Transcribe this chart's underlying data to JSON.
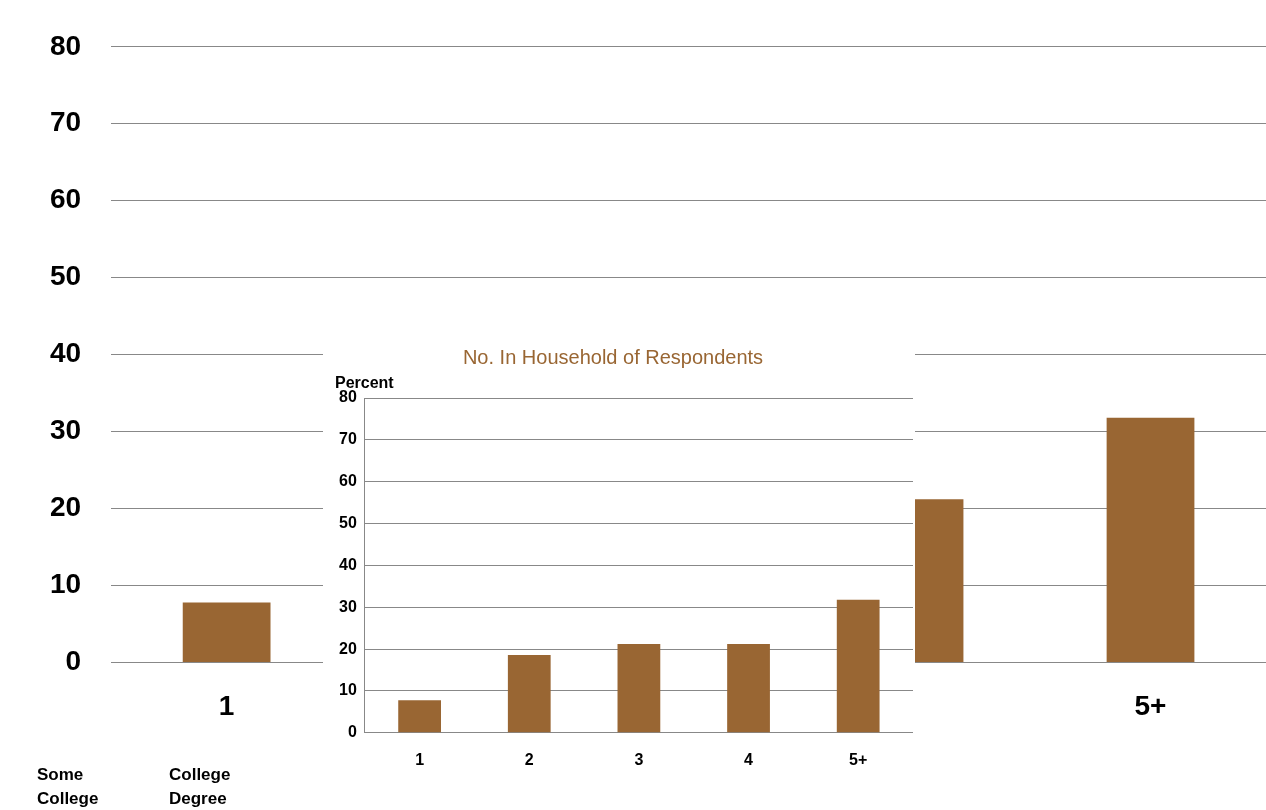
{
  "chart_data": [
    {
      "type": "bar",
      "categories": [
        "1",
        null,
        null,
        null,
        "5+"
      ],
      "values": [
        7.8,
        null,
        null,
        21.2,
        31.8
      ],
      "color": "#996633",
      "ylim": [
        0,
        80
      ],
      "yticks": [
        0,
        10,
        20,
        30,
        40,
        50,
        60,
        70,
        80
      ],
      "grid": "y",
      "legend": false,
      "annotations": [
        "Some College",
        "College Degree"
      ]
    },
    {
      "type": "bar",
      "title": "No. In Household of Respondents",
      "ylabel": "Percent",
      "categories": [
        "1",
        "2",
        "3",
        "4",
        "5+"
      ],
      "values": [
        7.8,
        18.6,
        21.2,
        21.2,
        31.8
      ],
      "color": "#996633",
      "ylim": [
        0,
        80
      ],
      "yticks": [
        0,
        10,
        20,
        30,
        40,
        50,
        60,
        70,
        80
      ],
      "grid": "y",
      "legend": false
    }
  ]
}
